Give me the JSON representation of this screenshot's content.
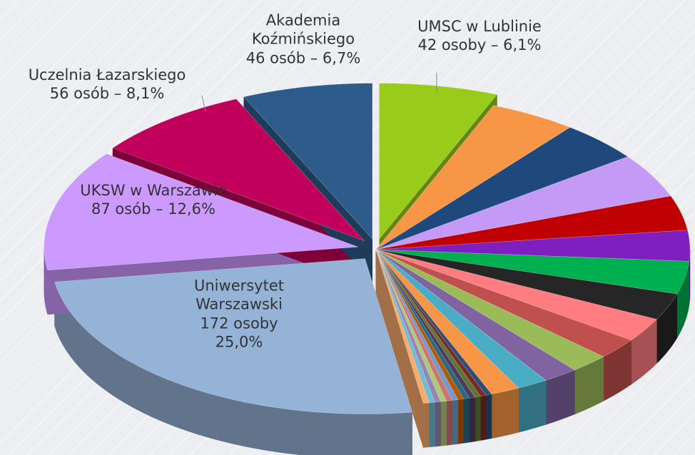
{
  "chart_data": {
    "type": "pie",
    "categories": [
      "UMSC w Lublinie",
      null,
      null,
      null,
      null,
      null,
      null,
      null,
      null,
      null,
      null,
      null,
      null,
      null,
      null,
      null,
      null,
      null,
      null,
      null,
      null,
      null,
      null,
      null,
      null,
      null,
      "Uniwersytet Warszawski",
      "UKSW w Warszawie",
      "Uczelnia Łazarskiego",
      "Akademia Koźmińskiego"
    ],
    "values": [
      6.1,
      4.5,
      4.2,
      4.6,
      3.6,
      3.2,
      3.4,
      2.8,
      2.5,
      2.2,
      2.0,
      1.8,
      1.6,
      1.5,
      0.3,
      0.3,
      0.3,
      0.3,
      0.3,
      0.3,
      0.3,
      0.3,
      0.3,
      0.3,
      0.3,
      0.3,
      25.0,
      12.6,
      8.1,
      6.7
    ],
    "value_labels": [
      "42 osoby – 6,1%",
      null,
      null,
      null,
      null,
      null,
      null,
      null,
      null,
      null,
      null,
      null,
      null,
      null,
      null,
      null,
      null,
      null,
      null,
      null,
      null,
      null,
      null,
      null,
      null,
      null,
      "172 osoby 25,0%",
      "87  osób – 12,6%",
      "56 osób – 8,1%",
      "46 osób – 6,7%"
    ],
    "colors": [
      "#99cc1a",
      "#f79646",
      "#1f497d",
      "#c39bf7",
      "#c00000",
      "#7f1fbf",
      "#00b050",
      "#262626",
      "#ff7c80",
      "#c0504d",
      "#9bbb59",
      "#8064a2",
      "#4bacc6",
      "#f79646",
      "#2c4d75",
      "#772c2a",
      "#5f7530",
      "#4d3b62",
      "#276a7c",
      "#b65708",
      "#729aca",
      "#cd7371",
      "#afc97a",
      "#9983b5",
      "#6fbdd1",
      "#f9ab6b",
      "#95b3d7",
      "#cc99ff",
      "#c0005a",
      "#2e5c8a"
    ]
  }
}
